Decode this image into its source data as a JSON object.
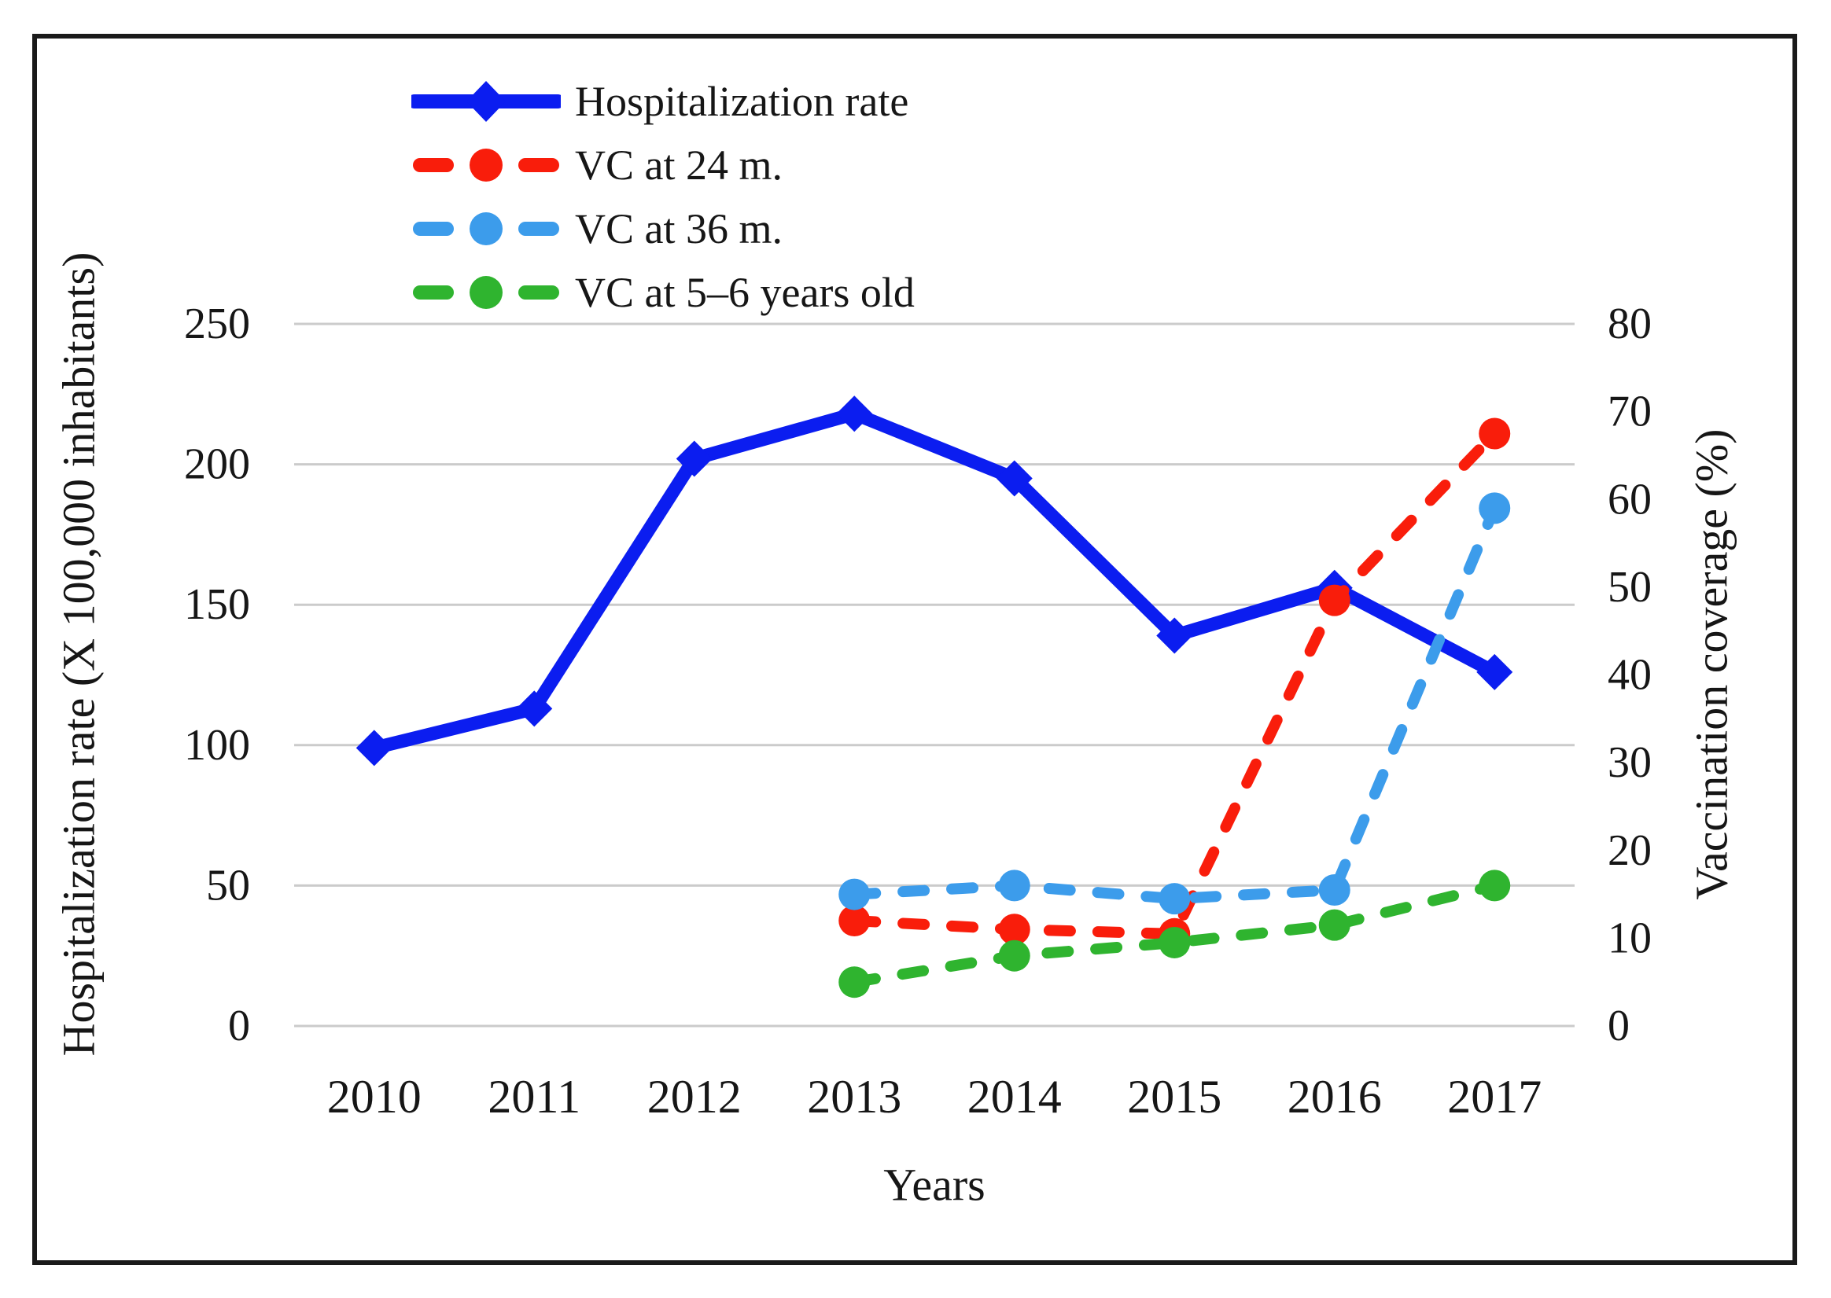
{
  "figure": {
    "border_color": "#1a1a1a",
    "background": "#ffffff",
    "text_color": "#161616",
    "gridline_color": "#cbcbcb"
  },
  "chart_data": {
    "type": "line",
    "title": "",
    "x": [
      2010,
      2011,
      2012,
      2013,
      2014,
      2015,
      2016,
      2017
    ],
    "xlabel": "Years",
    "grid": "horizontal",
    "legend_position": "top-left",
    "left_axis": {
      "label": "Hospitalization rate (X 100,000 inhabitants)",
      "ticks": [
        0,
        50,
        100,
        150,
        200,
        250
      ],
      "range": [
        0,
        250
      ]
    },
    "right_axis": {
      "label": "Vaccination coverage (%)",
      "ticks": [
        0,
        10,
        20,
        30,
        40,
        50,
        60,
        70,
        80
      ],
      "range": [
        0,
        80
      ]
    },
    "series": [
      {
        "name": "Hospitalization rate",
        "axis": "left",
        "color": "#0b1df0",
        "style": "solid",
        "marker": "diamond",
        "values": [
          99,
          113,
          202,
          218,
          195,
          139,
          156,
          126
        ]
      },
      {
        "name": "VC at 24 m.",
        "axis": "right",
        "color": "#f91d0b",
        "style": "dashed",
        "marker": "circle",
        "values": [
          null,
          null,
          null,
          12,
          11,
          10.5,
          48.5,
          67.5
        ]
      },
      {
        "name": "VC at 36 m.",
        "axis": "right",
        "color": "#3c9ceb",
        "style": "dashed",
        "marker": "circle",
        "values": [
          null,
          null,
          null,
          15,
          16,
          14.5,
          15.5,
          59
        ]
      },
      {
        "name": "VC at 5–6 years old",
        "axis": "right",
        "color": "#2fb42f",
        "style": "dashed",
        "marker": "circle",
        "values": [
          null,
          null,
          null,
          5,
          8,
          9.5,
          11.5,
          16
        ]
      }
    ]
  }
}
